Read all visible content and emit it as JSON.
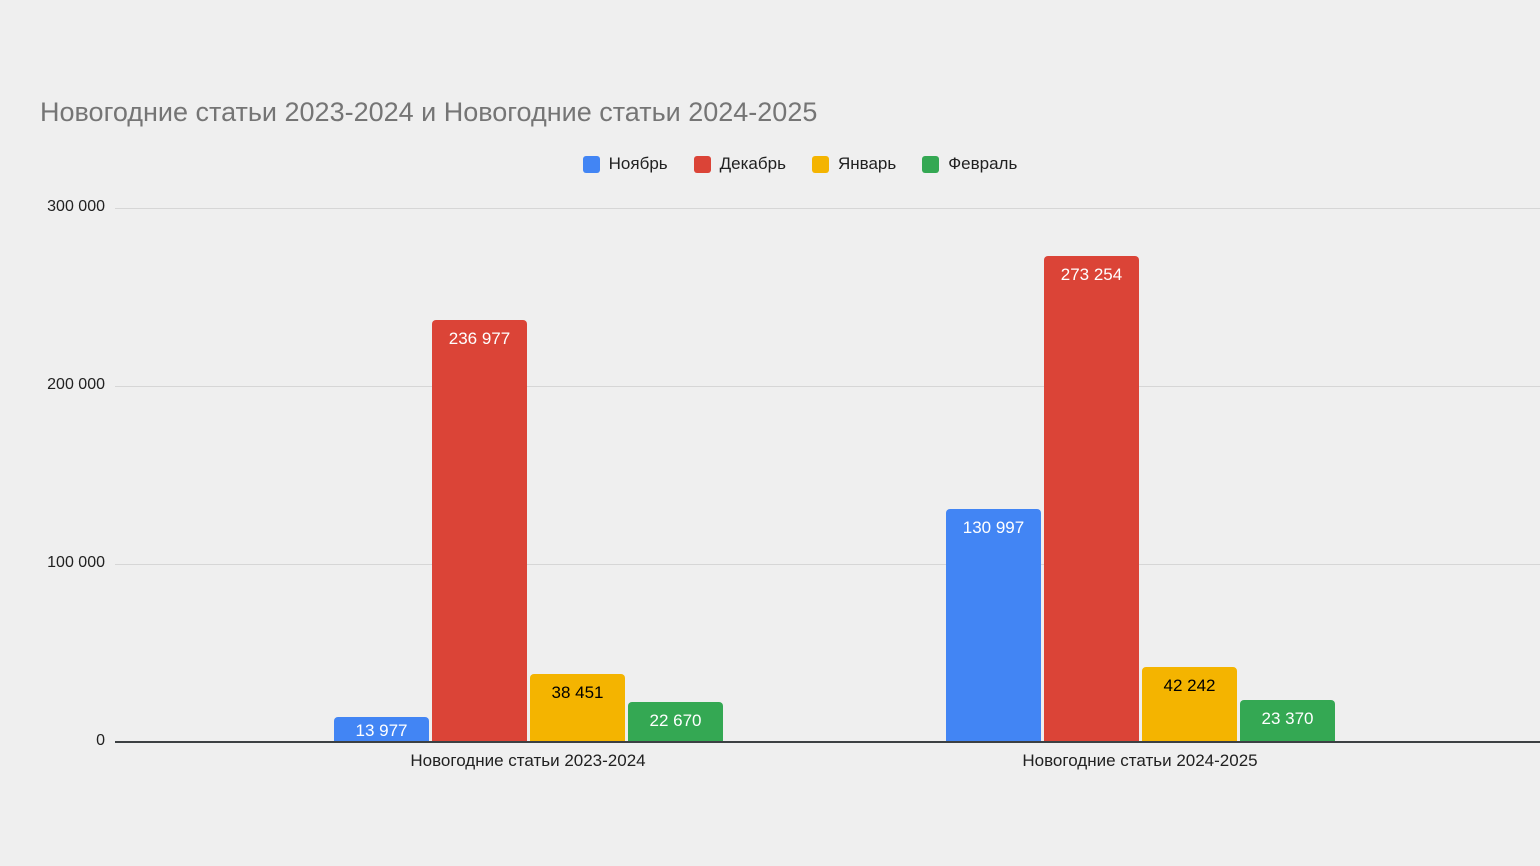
{
  "chart_data": {
    "type": "bar",
    "title": "Новогодние статьи 2023-2024 и Новогодние статьи 2024-2025",
    "categories": [
      "Новогодние статьи 2023-2024",
      "Новогодние статьи 2024-2025"
    ],
    "series": [
      {
        "name": "Ноябрь",
        "color": "#4285f4",
        "label_color": "#ffffff",
        "values": [
          13977,
          130997
        ],
        "labels": [
          "13 977",
          "130 997"
        ]
      },
      {
        "name": "Декабрь",
        "color": "#db4437",
        "label_color": "#ffffff",
        "values": [
          236977,
          273254
        ],
        "labels": [
          "236 977",
          "273 254"
        ]
      },
      {
        "name": "Январь",
        "color": "#f4b400",
        "label_color": "#000000",
        "values": [
          38451,
          42242
        ],
        "labels": [
          "38 451",
          "42 242"
        ]
      },
      {
        "name": "Февраль",
        "color": "#34a853",
        "label_color": "#ffffff",
        "values": [
          22670,
          23370
        ],
        "labels": [
          "22 670",
          "23 370"
        ]
      }
    ],
    "y_axis": {
      "min": 0,
      "max": 300000,
      "ticks": [
        0,
        100000,
        200000,
        300000
      ],
      "tick_labels": [
        "0",
        "100 000",
        "200 000",
        "300 000"
      ]
    },
    "grid": true,
    "legend_position": "top",
    "colors": {
      "background": "#efefef",
      "title_text": "#757575",
      "axis_text": "#212121",
      "gridline": "#d6d6d6",
      "axis_line": "#3c4043"
    }
  }
}
